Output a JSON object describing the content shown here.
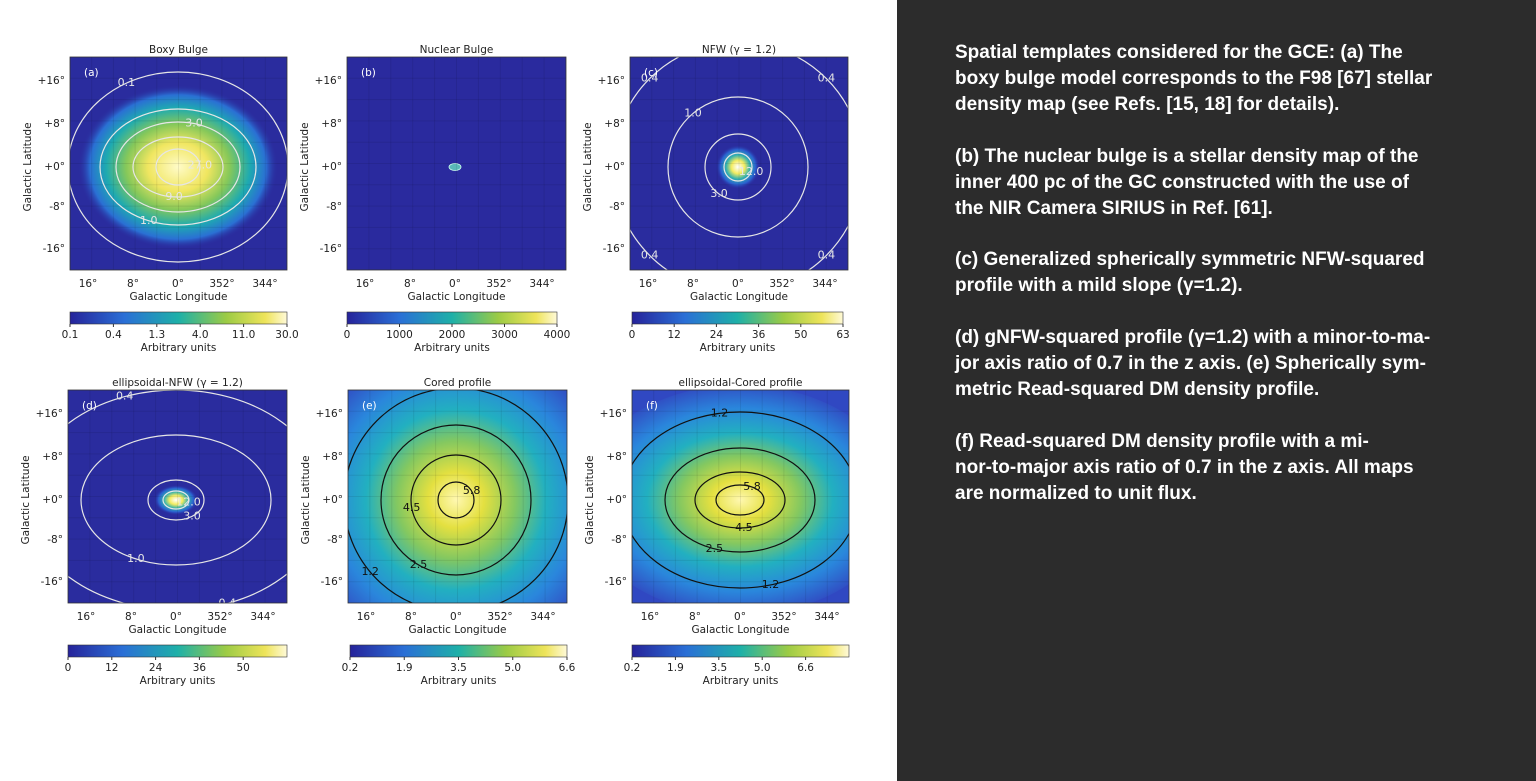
{
  "figure": {
    "panels": [
      {
        "title": "Boxy Bulge",
        "label": "(a)",
        "x_label": "Galactic Longitude",
        "y_label": "Galactic Latitude",
        "x_ticks": [
          "16°",
          "8°",
          "0°",
          "352°",
          "344°"
        ],
        "y_ticks": [
          "+16°",
          "+8°",
          "+0°",
          "-8°",
          "-16°"
        ],
        "colorbar_ticks": [
          "0.1",
          "0.4",
          "1.3",
          "4.0",
          "11.0",
          "30.0"
        ],
        "colorbar_label": "Arbitrary units",
        "contour_color": "#e6e6e6",
        "contours": [
          "0.1",
          "1.0",
          "3.0",
          "9.0",
          "27.0"
        ]
      },
      {
        "title": "Nuclear Bulge",
        "label": "(b)",
        "x_label": "Galactic Longitude",
        "y_label": "Galactic Latitude",
        "x_ticks": [
          "16°",
          "8°",
          "0°",
          "352°",
          "344°"
        ],
        "y_ticks": [
          "+16°",
          "+8°",
          "+0°",
          "-8°",
          "-16°"
        ],
        "colorbar_ticks": [
          "0",
          "1000",
          "2000",
          "3000",
          "4000"
        ],
        "colorbar_label": "Arbitrary units",
        "contour_color": "#e6e6e6",
        "contours": []
      },
      {
        "title": "NFW (γ = 1.2)",
        "label": "(c)",
        "x_label": "Galactic Longitude",
        "y_label": "Galactic Latitude",
        "x_ticks": [
          "16°",
          "8°",
          "0°",
          "352°",
          "344°"
        ],
        "y_ticks": [
          "+16°",
          "+8°",
          "+0°",
          "-8°",
          "-16°"
        ],
        "colorbar_ticks": [
          "0",
          "12",
          "24",
          "36",
          "50",
          "63"
        ],
        "colorbar_label": "Arbitrary units",
        "contour_color": "#e6e6e6",
        "contours": [
          "0.4",
          "1.0",
          "3.0",
          "12.0"
        ]
      },
      {
        "title": "ellipsoidal-NFW (γ = 1.2)",
        "label": "(d)",
        "x_label": "Galactic Longitude",
        "y_label": "Galactic Latitude",
        "x_ticks": [
          "16°",
          "8°",
          "0°",
          "352°",
          "344°"
        ],
        "y_ticks": [
          "+16°",
          "+8°",
          "+0°",
          "-8°",
          "-16°"
        ],
        "colorbar_ticks": [
          "0",
          "12",
          "24",
          "36",
          "50"
        ],
        "colorbar_label": "Arbitrary units",
        "contour_color": "#e6e6e6",
        "contours": [
          "0.4",
          "1.0",
          "3.0",
          "12.0"
        ]
      },
      {
        "title": "Cored profile",
        "label": "(e)",
        "x_label": "Galactic Longitude",
        "y_label": "Galactic Latitude",
        "x_ticks": [
          "16°",
          "8°",
          "0°",
          "352°",
          "344°"
        ],
        "y_ticks": [
          "+16°",
          "+8°",
          "+0°",
          "-8°",
          "-16°"
        ],
        "colorbar_ticks": [
          "0.2",
          "1.9",
          "3.5",
          "5.0",
          "6.6"
        ],
        "colorbar_label": "Arbitrary units",
        "contour_color": "#111111",
        "contours": [
          "1.2",
          "2.5",
          "4.5",
          "5.8"
        ]
      },
      {
        "title": "ellipsoidal-Cored profile",
        "label": "(f)",
        "x_label": "Galactic Longitude",
        "y_label": "Galactic Latitude",
        "x_ticks": [
          "16°",
          "8°",
          "0°",
          "352°",
          "344°"
        ],
        "y_ticks": [
          "+16°",
          "+8°",
          "+0°",
          "-8°",
          "-16°"
        ],
        "colorbar_ticks": [
          "0.2",
          "1.9",
          "3.5",
          "5.0",
          "6.6"
        ],
        "colorbar_label": "Arbitrary units",
        "contour_color": "#111111",
        "contours": [
          "1.2",
          "2.5",
          "4.5",
          "5.8"
        ]
      }
    ]
  },
  "caption": {
    "paragraphs": [
      [
        "Spatial templates considered for the GCE: (a) The",
        "boxy bulge model corresponds to the F98 [67] stellar",
        "density map (see Refs. [15, 18] for details)."
      ],
      [
        "(b) The nuclear bulge is a stellar density map of the",
        "inner 400 pc of the GC constructed with the use of",
        "the NIR Camera SIRIUS in Ref. [61]."
      ],
      [
        "(c) Generalized spherically symmetric NFW-squared",
        "profile with a mild slope (γ=1.2)."
      ],
      [
        "(d) gNFW-squared profile (γ=1.2) with a minor-to-ma-",
        "jor axis ratio of 0.7 in the z axis. (e) Spherically sym-",
        "metric Read-squared DM density profile."
      ],
      [
        "(f) Read-squared DM density profile with a mi-",
        "nor-to-major axis ratio of 0.7 in the z axis. All maps",
        "are normalized to unit flux."
      ]
    ]
  }
}
